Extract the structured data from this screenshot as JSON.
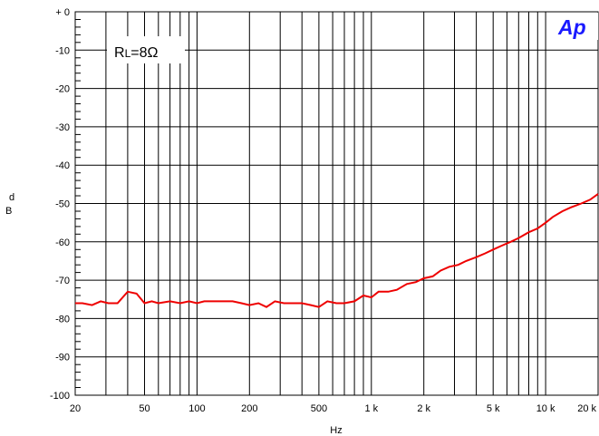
{
  "chart_data": {
    "type": "line",
    "xscale": "log",
    "xlim": [
      20,
      20000
    ],
    "ylim": [
      -100,
      0
    ],
    "grid": true,
    "xlabel": "Hz",
    "ylabel_top": "d",
    "ylabel_bottom": "B",
    "x_ticks": [
      {
        "value": 20,
        "label": "20"
      },
      {
        "value": 50,
        "label": "50"
      },
      {
        "value": 100,
        "label": "100"
      },
      {
        "value": 200,
        "label": "200"
      },
      {
        "value": 500,
        "label": "500"
      },
      {
        "value": 1000,
        "label": "1 k"
      },
      {
        "value": 2000,
        "label": "2 k"
      },
      {
        "value": 5000,
        "label": "5 k"
      },
      {
        "value": 10000,
        "label": "10 k"
      },
      {
        "value": 20000,
        "label": "20 k"
      }
    ],
    "y_ticks": [
      {
        "value": 0,
        "label": "+ 0"
      },
      {
        "value": -10,
        "label": "-10"
      },
      {
        "value": -20,
        "label": "-20"
      },
      {
        "value": -30,
        "label": "-30"
      },
      {
        "value": -40,
        "label": "-40"
      },
      {
        "value": -50,
        "label": "-50"
      },
      {
        "value": -60,
        "label": "-60"
      },
      {
        "value": -70,
        "label": "-70"
      },
      {
        "value": -80,
        "label": "-80"
      },
      {
        "value": -90,
        "label": "-90"
      },
      {
        "value": -100,
        "label": "-100"
      }
    ],
    "annotation": {
      "prefix": "R",
      "subscript": "L",
      "suffix": "=8Ω"
    },
    "logo_text": "Ap",
    "line_color": "#ee0000",
    "series": [
      {
        "x": [
          20,
          22,
          25,
          28,
          31,
          35,
          40,
          45,
          50,
          55,
          60,
          70,
          80,
          90,
          100,
          110,
          125,
          140,
          160,
          180,
          200,
          225,
          250,
          280,
          315,
          350,
          400,
          450,
          500,
          560,
          630,
          700,
          800,
          900,
          1000,
          1100,
          1250,
          1400,
          1600,
          1800,
          2000,
          2250,
          2500,
          2800,
          3150,
          3500,
          4000,
          4500,
          5000,
          5600,
          6300,
          7000,
          8000,
          9000,
          10000,
          11000,
          12500,
          14000,
          16000,
          18000,
          20000
        ],
        "y": [
          -76,
          -76,
          -76.5,
          -75.5,
          -76,
          -76,
          -73,
          -73.5,
          -76,
          -75.5,
          -76,
          -75.5,
          -76,
          -75.5,
          -76,
          -75.5,
          -75.5,
          -75.5,
          -75.5,
          -76,
          -76.5,
          -76,
          -77,
          -75.5,
          -76,
          -76,
          -76,
          -76.5,
          -77,
          -75.5,
          -76,
          -76,
          -75.5,
          -74,
          -74.5,
          -73,
          -73,
          -72.5,
          -71,
          -70.5,
          -69.5,
          -69,
          -67.5,
          -66.5,
          -66,
          -65,
          -64,
          -63,
          -62,
          -61,
          -60,
          -59,
          -57.5,
          -56.5,
          -55,
          -53.5,
          -52,
          -51,
          -50,
          -49,
          -47.5
        ]
      }
    ]
  }
}
